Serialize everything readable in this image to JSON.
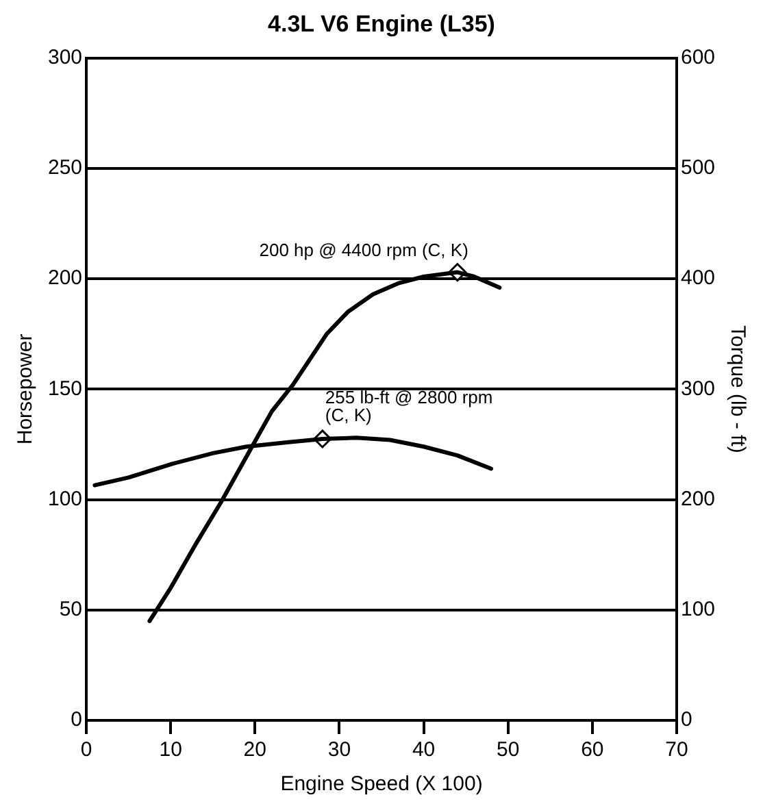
{
  "chart_data": {
    "type": "line",
    "title": "4.3L V6 Engine (L35)",
    "xlabel": "Engine Speed (X 100)",
    "ylabel": "Horsepower",
    "y2label": "Torque (lb - ft)",
    "xlim": [
      0,
      70
    ],
    "xticks": [
      0,
      10,
      20,
      30,
      40,
      50,
      60,
      70
    ],
    "ylim": [
      0,
      300
    ],
    "yticks": [
      0,
      50,
      100,
      150,
      200,
      250,
      300
    ],
    "y2lim": [
      0,
      600
    ],
    "y2ticks": [
      0,
      100,
      200,
      300,
      400,
      500,
      600
    ],
    "grid": "y",
    "legend": false,
    "series": [
      {
        "color": "#000000",
        "marker": "none",
        "x": [
          7.5,
          10,
          13,
          16,
          19.5,
          22,
          24.5,
          28.5,
          31,
          34,
          37,
          40,
          42,
          44,
          46,
          49
        ],
        "values": [
          45,
          60,
          80,
          99,
          123,
          140,
          152,
          175,
          185,
          193,
          198,
          201,
          202,
          203,
          201,
          196
        ]
      },
      {
        "axis": "y2",
        "color": "#000000",
        "marker": "none",
        "x": [
          1,
          5,
          10,
          15,
          19,
          24,
          28,
          32,
          36,
          40,
          44,
          48
        ],
        "values": [
          213,
          220,
          232,
          242,
          248,
          252,
          255,
          256,
          254,
          248,
          240,
          228
        ]
      },
      {
        "type": "scatter",
        "color": "#000000",
        "marker": "diamond",
        "x": [
          44
        ],
        "values": [
          203
        ]
      },
      {
        "type": "scatter",
        "axis": "y2",
        "color": "#000000",
        "marker": "diamond",
        "x": [
          28
        ],
        "values": [
          255
        ]
      }
    ],
    "annotations": [
      {
        "text": "200 hp @ 4400 rpm (C, K)",
        "x": 44,
        "y": 203
      },
      {
        "text": "255 lb-ft @ 2800 rpm\n(C, K)",
        "x": 28,
        "y": 127.5
      }
    ]
  }
}
